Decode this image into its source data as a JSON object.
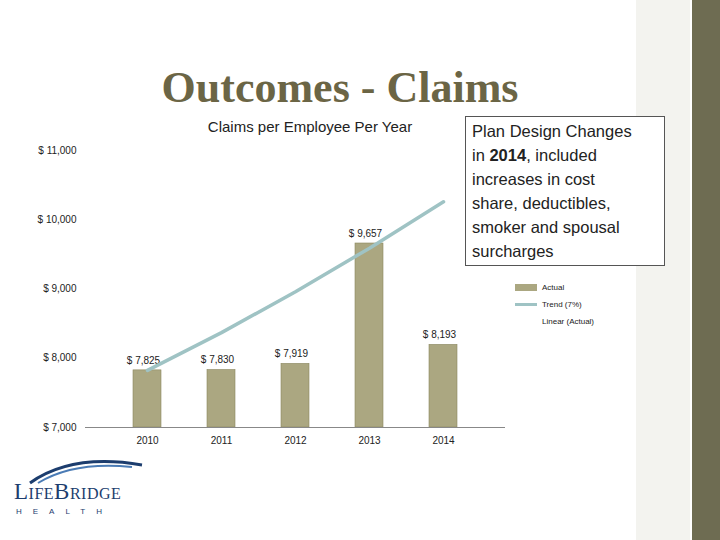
{
  "page": {
    "title": "Outcomes - Claims",
    "logo": [
      "LifeBridge",
      "HEALTH"
    ]
  },
  "chart_data": {
    "type": "bar",
    "title": "Claims per Employee Per Year",
    "categories": [
      "2010",
      "2011",
      "2012",
      "2013",
      "2014"
    ],
    "series": [
      {
        "name": "Actual",
        "type": "bar",
        "color": "#aba781",
        "values": [
          7825,
          7830,
          7919,
          9657,
          8193
        ],
        "value_labels": [
          "$ 7,825",
          "$ 7,830",
          "$ 7,919",
          "$ 9,657",
          "$ 8,193"
        ]
      },
      {
        "name": "Trend (7%)",
        "type": "line",
        "color": "#9fc3c4",
        "values": [
          7825,
          8370,
          8960,
          9590,
          10260
        ]
      },
      {
        "name": "Linear (Actual)",
        "type": "line",
        "values": [
          null,
          null,
          null,
          null,
          null
        ]
      }
    ],
    "ylim": [
      7000,
      11000
    ],
    "yticks": [
      {
        "value": 7000,
        "label": "$ 7,000"
      },
      {
        "value": 8000,
        "label": "$ 8,000"
      },
      {
        "value": 9000,
        "label": "$ 9,000"
      },
      {
        "value": 10000,
        "label": "$ 10,000"
      },
      {
        "value": 11000,
        "label": "$ 11,000"
      }
    ],
    "grid": false,
    "data_labels": true,
    "legend": "right",
    "annotation": [
      "Plan Design Changes",
      "in 2014, included",
      "increases in cost",
      "share, deductibles,",
      "smoker and spousal",
      "surcharges"
    ]
  }
}
